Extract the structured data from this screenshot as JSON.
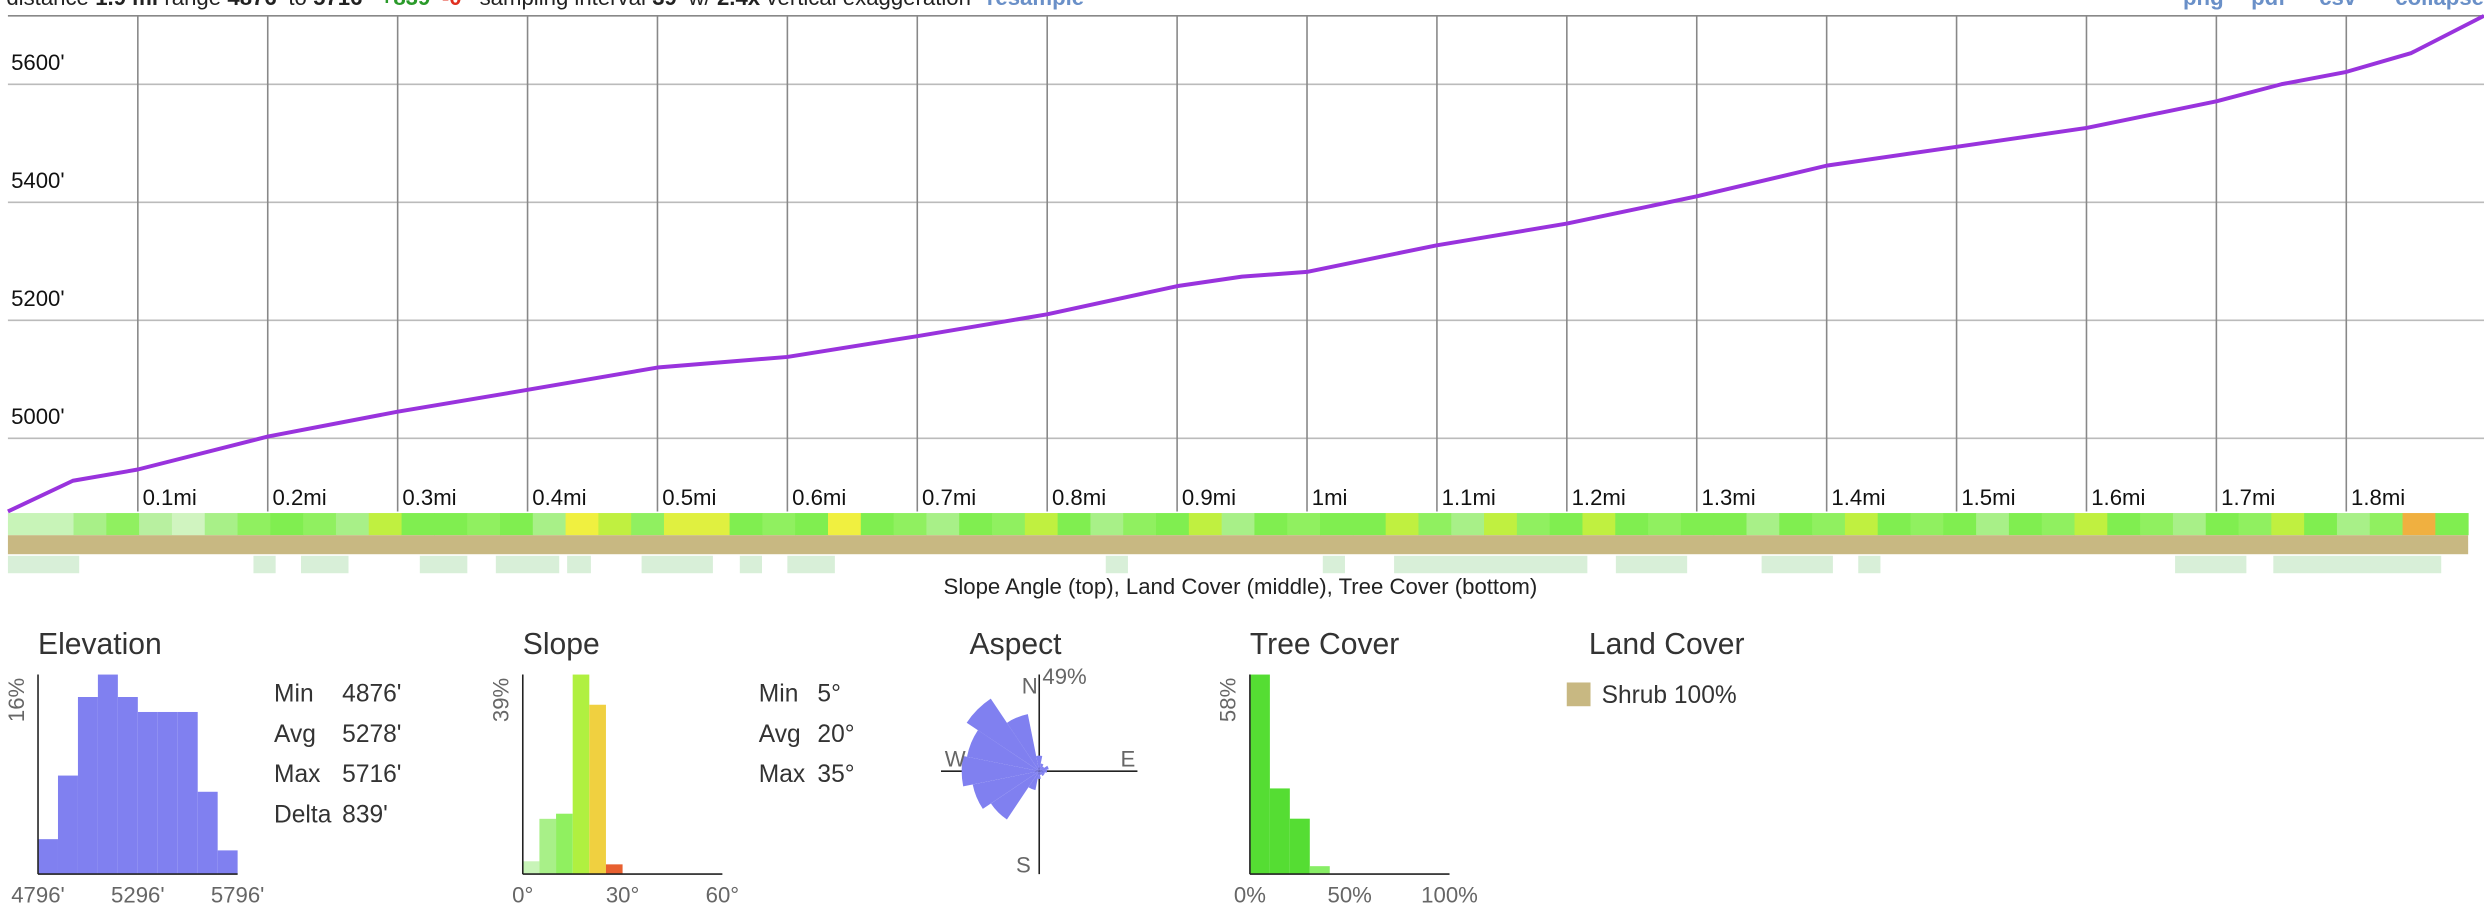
{
  "header": {
    "distance_label": "distance",
    "distance": "1.9 mi",
    "range_label": "range",
    "range_from": "4876'",
    "range_to_label": "to",
    "range_to": "5716'",
    "gain": "+839'",
    "loss": "-0'",
    "interval_label": "sampling interval",
    "interval": "39'",
    "exag_label": "w/",
    "exag": "2.4x",
    "exag_suffix": "vertical exaggeration",
    "resample": "resample",
    "links": [
      "png",
      "pdf",
      "csv",
      "collapse"
    ]
  },
  "chart_data": [
    {
      "type": "line",
      "x": [
        0,
        0.05,
        0.1,
        0.2,
        0.3,
        0.4,
        0.5,
        0.6,
        0.7,
        0.8,
        0.9,
        0.95,
        1.0,
        1.1,
        1.2,
        1.3,
        1.4,
        1.5,
        1.6,
        1.7,
        1.75,
        1.8,
        1.85,
        1.906
      ],
      "values": [
        4876,
        4928,
        4947,
        5003,
        5045,
        5082,
        5120,
        5138,
        5173,
        5210,
        5258,
        5274,
        5282,
        5327,
        5364,
        5410,
        5462,
        5494,
        5526,
        5571,
        5600,
        5621,
        5653,
        5716
      ],
      "color": "#9933dd",
      "xlim": [
        0,
        1.906
      ],
      "ylim": [
        4876,
        5716
      ],
      "grid": true,
      "xticks": [
        {
          "value": 0.1,
          "label": "0.1mi"
        },
        {
          "value": 0.2,
          "label": "0.2mi"
        },
        {
          "value": 0.3,
          "label": "0.3mi"
        },
        {
          "value": 0.4,
          "label": "0.4mi"
        },
        {
          "value": 0.5,
          "label": "0.5mi"
        },
        {
          "value": 0.6,
          "label": "0.6mi"
        },
        {
          "value": 0.7,
          "label": "0.7mi"
        },
        {
          "value": 0.8,
          "label": "0.8mi"
        },
        {
          "value": 0.9,
          "label": "0.9mi"
        },
        {
          "value": 1,
          "label": "1mi"
        },
        {
          "value": 1.1,
          "label": "1.1mi"
        },
        {
          "value": 1.2,
          "label": "1.2mi"
        },
        {
          "value": 1.3,
          "label": "1.3mi"
        },
        {
          "value": 1.4,
          "label": "1.4mi"
        },
        {
          "value": 1.5,
          "label": "1.5mi"
        },
        {
          "value": 1.6,
          "label": "1.6mi"
        },
        {
          "value": 1.7,
          "label": "1.7mi"
        },
        {
          "value": 1.8,
          "label": "1.8mi"
        }
      ],
      "yticks": [
        {
          "value": 5000,
          "label": "5000'"
        },
        {
          "value": 5200,
          "label": "5200'"
        },
        {
          "value": 5400,
          "label": "5400'"
        },
        {
          "value": 5600,
          "label": "5600'"
        }
      ]
    },
    {
      "type": "histogram",
      "title": "Elevation",
      "bins": [
        4796,
        4896,
        4996,
        5096,
        5196,
        5296,
        5396,
        5496,
        5596,
        5696,
        5796
      ],
      "values": [
        2.8,
        7.9,
        14.2,
        16,
        14.2,
        13,
        13,
        13,
        6.6,
        1.9
      ],
      "color": "#8080f0",
      "ylim": [
        0,
        16
      ],
      "yticks": [
        {
          "value": 16,
          "label": "16%"
        }
      ],
      "xlim": [
        4796,
        5796
      ],
      "xticks": [
        {
          "value": 4796,
          "label": "4796'"
        },
        {
          "value": 5296,
          "label": "5296'"
        },
        {
          "value": 5796,
          "label": "5796'"
        }
      ]
    },
    {
      "type": "histogram",
      "title": "Slope",
      "bins": [
        0,
        5,
        10,
        15,
        20,
        25,
        30
      ],
      "values": [
        2.5,
        10.8,
        11.8,
        39,
        33.1,
        1.9
      ],
      "colors": [
        "#c8f4b8",
        "#a8f088",
        "#90f060",
        "#b0f040",
        "#f0d040",
        "#e86030"
      ],
      "ylim": [
        0,
        39
      ],
      "yticks": [
        {
          "value": 39,
          "label": "39%"
        }
      ],
      "xlim": [
        0,
        60
      ],
      "xticks": [
        {
          "value": 0,
          "label": "0°"
        },
        {
          "value": 30,
          "label": "30°"
        },
        {
          "value": 60,
          "label": "60°"
        }
      ]
    },
    {
      "type": "rose",
      "title": "Aspect",
      "directions": [
        "N",
        "E",
        "S",
        "W"
      ],
      "values": [
        8,
        4,
        3,
        5,
        4,
        3,
        3,
        2,
        4,
        10,
        30,
        35,
        40,
        38,
        45,
        30
      ],
      "color": "#8080f0",
      "rlim": [
        0,
        49
      ],
      "rticks": [
        {
          "value": 49,
          "label": "49%"
        }
      ]
    },
    {
      "type": "histogram",
      "title": "Tree Cover",
      "bins": [
        0,
        10,
        20,
        30,
        40
      ],
      "values": [
        58,
        24.9,
        16.1,
        2.3
      ],
      "colors": [
        "#55dd33",
        "#55dd33",
        "#55dd33",
        "#88ee66"
      ],
      "ylim": [
        0,
        58
      ],
      "yticks": [
        {
          "value": 58,
          "label": "58%"
        }
      ],
      "xlim": [
        0,
        100
      ],
      "xticks": [
        {
          "value": 0,
          "label": "0%"
        },
        {
          "value": 50,
          "label": "50%"
        },
        {
          "value": 100,
          "label": "100%"
        }
      ]
    }
  ],
  "strip_caption": "Slope Angle (top), Land Cover (middle), Tree Cover (bottom)",
  "slope_strip": [
    "#c8f4b8",
    "#c8f4b8",
    "#a8f088",
    "#90f060",
    "#b8f0a0",
    "#d0f4c0",
    "#a8f088",
    "#90f060",
    "#80ee50",
    "#90f060",
    "#a8f088",
    "#c0f040",
    "#80ee50",
    "#80ee50",
    "#90f060",
    "#80ee50",
    "#a8f088",
    "#f0f040",
    "#c0f040",
    "#90f060",
    "#e0f040",
    "#e0f040",
    "#80ee50",
    "#90f060",
    "#80ee50",
    "#f0f040",
    "#80ee50",
    "#90f060",
    "#a8f088",
    "#80ee50",
    "#90f060",
    "#c0f040",
    "#80ee50",
    "#a8f088",
    "#90f060",
    "#80ee50",
    "#c0f040",
    "#a8f088",
    "#80ee50",
    "#90f060",
    "#80ee50",
    "#80ee50",
    "#c0f040",
    "#90f060",
    "#a8f088",
    "#c0f040",
    "#90f060",
    "#80ee50",
    "#c0f040",
    "#80ee50",
    "#90f060",
    "#80ee50",
    "#80ee50",
    "#a8f088",
    "#80ee50",
    "#90f060",
    "#c0f040",
    "#80ee50",
    "#90f060",
    "#80ee50",
    "#a8f088",
    "#80ee50",
    "#90f060",
    "#c0f040",
    "#80ee50",
    "#90f060",
    "#a8f088",
    "#80ee50",
    "#90f060",
    "#c0f040",
    "#80ee50",
    "#a8f088",
    "#90f060",
    "#f0b040",
    "#80ee50"
  ],
  "land_color": "#c8b882",
  "elevation_stats": [
    {
      "label": "Min",
      "value": "4876'"
    },
    {
      "label": "Avg",
      "value": "5278'"
    },
    {
      "label": "Max",
      "value": "5716'"
    },
    {
      "label": "Delta",
      "value": "839'"
    }
  ],
  "slope_stats": [
    {
      "label": "Min",
      "value": "5°"
    },
    {
      "label": "Avg",
      "value": "20°"
    },
    {
      "label": "Max",
      "value": "35°"
    }
  ],
  "land_cover": {
    "title": "Land Cover",
    "items": [
      {
        "label": "Shrub 100%",
        "color": "#c8b882"
      }
    ]
  }
}
